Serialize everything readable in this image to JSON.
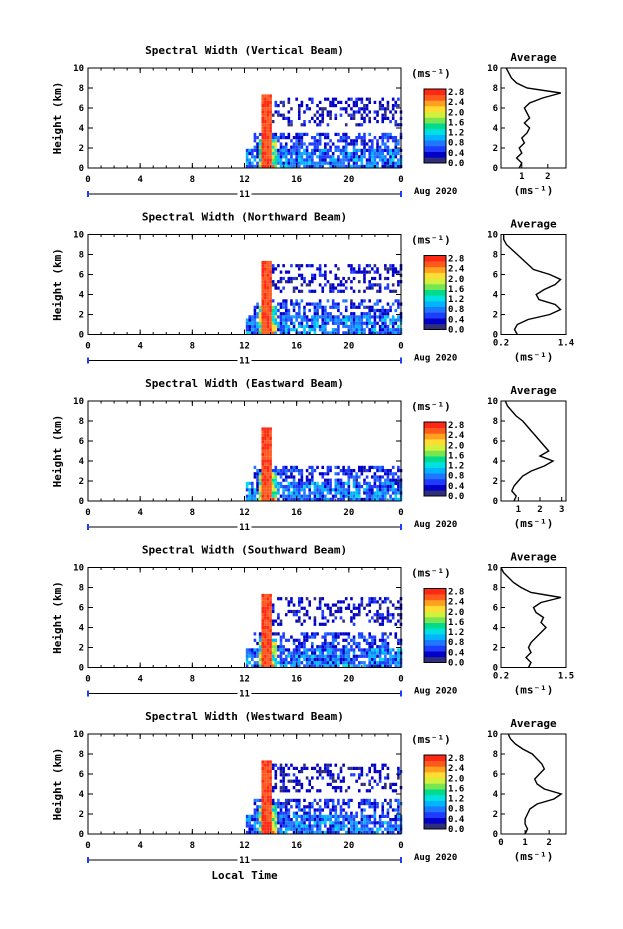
{
  "colors": {
    "scale": [
      "#2e2e7a",
      "#0000c8",
      "#1e3cff",
      "#1e78ff",
      "#00b4ff",
      "#00e0e0",
      "#00dc8c",
      "#78e650",
      "#d2f03c",
      "#ffdc32",
      "#ffa01e",
      "#ff5a1e",
      "#ff2814"
    ]
  },
  "common": {
    "colorbar_unit": "(ms⁻¹)",
    "colorbar_ticks": [
      "2.8",
      "2.4",
      "2.0",
      "1.6",
      "1.2",
      "0.8",
      "0.4",
      "0.0"
    ],
    "x_ticks": [
      "0",
      "4",
      "8",
      "12",
      "16",
      "20",
      "0"
    ],
    "date_day": "11",
    "date_label": "Aug 2020",
    "y_label": "Height (km)",
    "y_ticks": [
      "0",
      "2",
      "4",
      "6",
      "8",
      "10"
    ],
    "avg_title": "Average",
    "avg_unit": "(ms⁻¹)",
    "x_axis_label": "Local Time"
  },
  "chart_data": [
    {
      "type": "heatmap",
      "title": "Spectral Width (Vertical Beam)",
      "ylabel": "Height (km)",
      "xlabel": "Local Time",
      "xlim": [
        0,
        24
      ],
      "ylim": [
        0,
        10
      ],
      "colorbar": {
        "label": "(ms⁻¹)",
        "range": [
          0.0,
          2.8
        ]
      },
      "avg_profile": {
        "title": "Average",
        "xlabel": "(ms⁻¹)",
        "xticks": [
          "1",
          "2"
        ],
        "xlim": [
          0.2,
          2.7
        ],
        "heights": [
          0,
          0.5,
          1,
          1.5,
          2,
          2.5,
          3,
          3.5,
          4,
          4.5,
          5,
          5.5,
          6,
          6.5,
          7,
          7.5,
          8,
          8.5,
          9,
          9.5,
          10
        ],
        "values": [
          0.9,
          1.0,
          0.8,
          1.0,
          0.9,
          1.1,
          1.0,
          1.2,
          1.3,
          1.1,
          1.3,
          1.2,
          1.1,
          1.3,
          1.8,
          2.5,
          1.2,
          0.8,
          0.6,
          0.5,
          0.4
        ]
      }
    },
    {
      "type": "heatmap",
      "title": "Spectral Width (Northward Beam)",
      "ylabel": "Height (km)",
      "xlabel": "Local Time",
      "xlim": [
        0,
        24
      ],
      "ylim": [
        0,
        10
      ],
      "colorbar": {
        "label": "(ms⁻¹)",
        "range": [
          0.0,
          2.8
        ]
      },
      "avg_profile": {
        "title": "Average",
        "xlabel": "(ms⁻¹)",
        "xticks": [
          "0.2",
          "1.4"
        ],
        "xlim": [
          0.2,
          1.4
        ],
        "heights": [
          0,
          0.5,
          1,
          1.5,
          2,
          2.5,
          3,
          3.5,
          4,
          4.5,
          5,
          5.5,
          6,
          6.5,
          7,
          7.5,
          8,
          8.5,
          9,
          9.5,
          10
        ],
        "values": [
          0.5,
          0.45,
          0.5,
          0.7,
          1.1,
          1.3,
          1.2,
          0.9,
          0.85,
          1.0,
          1.2,
          1.3,
          1.1,
          0.8,
          0.7,
          0.6,
          0.5,
          0.4,
          0.3,
          0.25,
          0.25
        ]
      }
    },
    {
      "type": "heatmap",
      "title": "Spectral Width (Eastward Beam)",
      "ylabel": "Height (km)",
      "xlabel": "Local Time",
      "xlim": [
        0,
        24
      ],
      "ylim": [
        0,
        10
      ],
      "colorbar": {
        "label": "(ms⁻¹)",
        "range": [
          0.0,
          2.8
        ]
      },
      "avg_profile": {
        "title": "Average",
        "xlabel": "(ms⁻¹)",
        "xticks": [
          "1",
          "2",
          "3"
        ],
        "xlim": [
          0.2,
          3.2
        ],
        "heights": [
          0,
          0.5,
          1,
          1.5,
          2,
          2.5,
          3,
          3.5,
          4,
          4.5,
          5,
          5.5,
          6,
          6.5,
          7,
          7.5,
          8,
          8.5,
          9,
          9.5,
          10
        ],
        "values": [
          0.8,
          0.9,
          0.7,
          0.8,
          1.0,
          1.2,
          1.6,
          2.2,
          2.6,
          2.0,
          2.4,
          2.2,
          2.0,
          1.8,
          1.6,
          1.4,
          1.2,
          0.9,
          0.7,
          0.5,
          0.4
        ]
      }
    },
    {
      "type": "heatmap",
      "title": "Spectral Width (Southward Beam)",
      "ylabel": "Height (km)",
      "xlabel": "Local Time",
      "xlim": [
        0,
        24
      ],
      "ylim": [
        0,
        10
      ],
      "colorbar": {
        "label": "(ms⁻¹)",
        "range": [
          0.0,
          2.8
        ]
      },
      "avg_profile": {
        "title": "Average",
        "xlabel": "(ms⁻¹)",
        "xticks": [
          "0.2",
          "1.5"
        ],
        "xlim": [
          0.2,
          1.5
        ],
        "heights": [
          0,
          0.5,
          1,
          1.5,
          2,
          2.5,
          3,
          3.5,
          4,
          4.5,
          5,
          5.5,
          6,
          6.5,
          7,
          7.5,
          8,
          8.5,
          9,
          9.5,
          10
        ],
        "values": [
          0.75,
          0.8,
          0.7,
          0.8,
          0.75,
          0.8,
          0.9,
          1.0,
          1.1,
          1.0,
          1.05,
          0.9,
          0.85,
          1.0,
          1.4,
          0.8,
          0.6,
          0.45,
          0.35,
          0.25,
          0.2
        ]
      }
    },
    {
      "type": "heatmap",
      "title": "Spectral Width (Westward Beam)",
      "ylabel": "Height (km)",
      "xlabel": "Local Time",
      "xlim": [
        0,
        24
      ],
      "ylim": [
        0,
        10
      ],
      "colorbar": {
        "label": "(ms⁻¹)",
        "range": [
          0.0,
          2.8
        ]
      },
      "avg_profile": {
        "title": "Average",
        "xlabel": "(ms⁻¹)",
        "xticks": [
          "0",
          "1",
          "2"
        ],
        "xlim": [
          0,
          2.7
        ],
        "heights": [
          0,
          0.5,
          1,
          1.5,
          2,
          2.5,
          3,
          3.5,
          4,
          4.5,
          5,
          5.5,
          6,
          6.5,
          7,
          7.5,
          8,
          8.5,
          9,
          9.5,
          10
        ],
        "values": [
          1.0,
          1.1,
          1.0,
          1.0,
          1.1,
          1.2,
          1.5,
          2.2,
          2.5,
          1.8,
          1.5,
          1.4,
          1.6,
          1.8,
          1.7,
          1.5,
          1.3,
          0.9,
          0.6,
          0.4,
          0.3
        ]
      }
    }
  ]
}
